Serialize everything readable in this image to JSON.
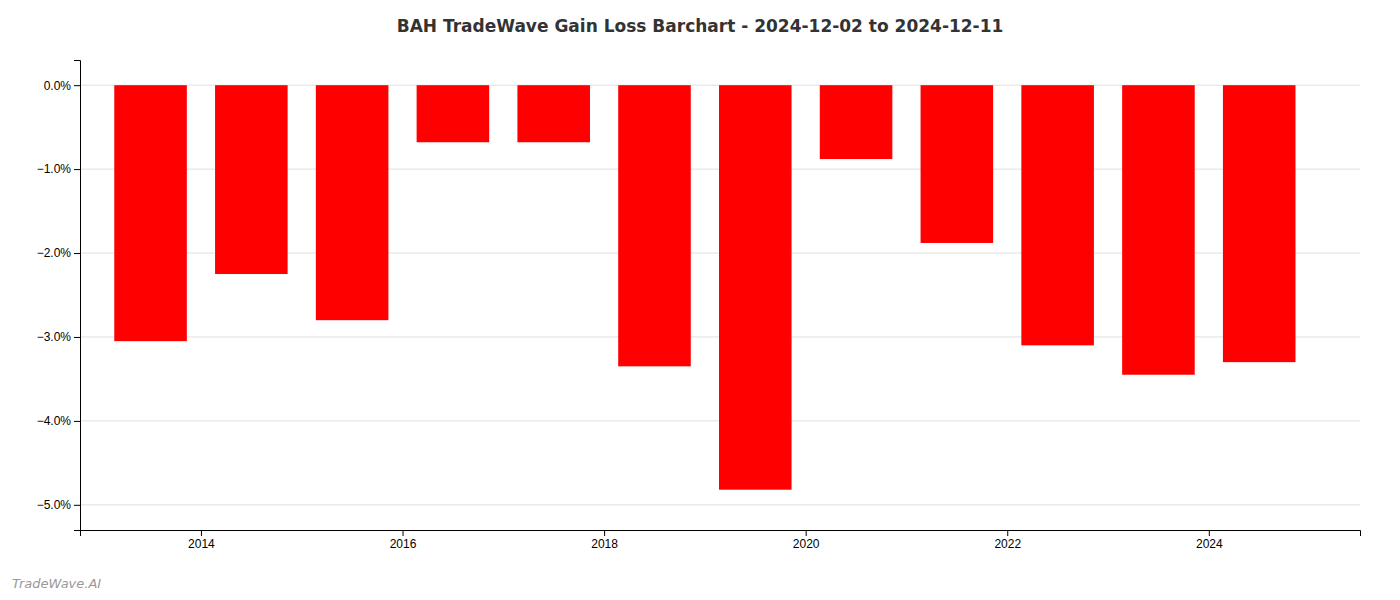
{
  "chart_data": {
    "type": "bar",
    "title": "BAH TradeWave Gain Loss Barchart - 2024-12-02 to 2024-12-11",
    "annotations": [
      "TradeWave.AI"
    ],
    "x": [
      2013.5,
      2014.5,
      2015.5,
      2016.5,
      2017.5,
      2018.5,
      2019.5,
      2020.5,
      2021.5,
      2022.5,
      2023.5,
      2024.5
    ],
    "values": [
      -3.05,
      -2.25,
      -2.8,
      -0.68,
      -0.68,
      -3.35,
      -4.82,
      -0.88,
      -1.88,
      -3.1,
      -3.45,
      -3.3
    ],
    "color": "#ff0000",
    "xlim": [
      2012.8,
      2025.5
    ],
    "xticks": [
      2014,
      2016,
      2018,
      2020,
      2022,
      2024
    ],
    "ylim": [
      -5.3,
      0.3
    ],
    "yticks": [
      {
        "value": 0.0,
        "label": "0.0%"
      },
      {
        "value": -1.0,
        "label": "−1.0%"
      },
      {
        "value": -2.0,
        "label": "−2.0%"
      },
      {
        "value": -3.0,
        "label": "−3.0%"
      },
      {
        "value": -4.0,
        "label": "−4.0%"
      },
      {
        "value": -5.0,
        "label": "−5.0%"
      }
    ],
    "grid": true
  }
}
